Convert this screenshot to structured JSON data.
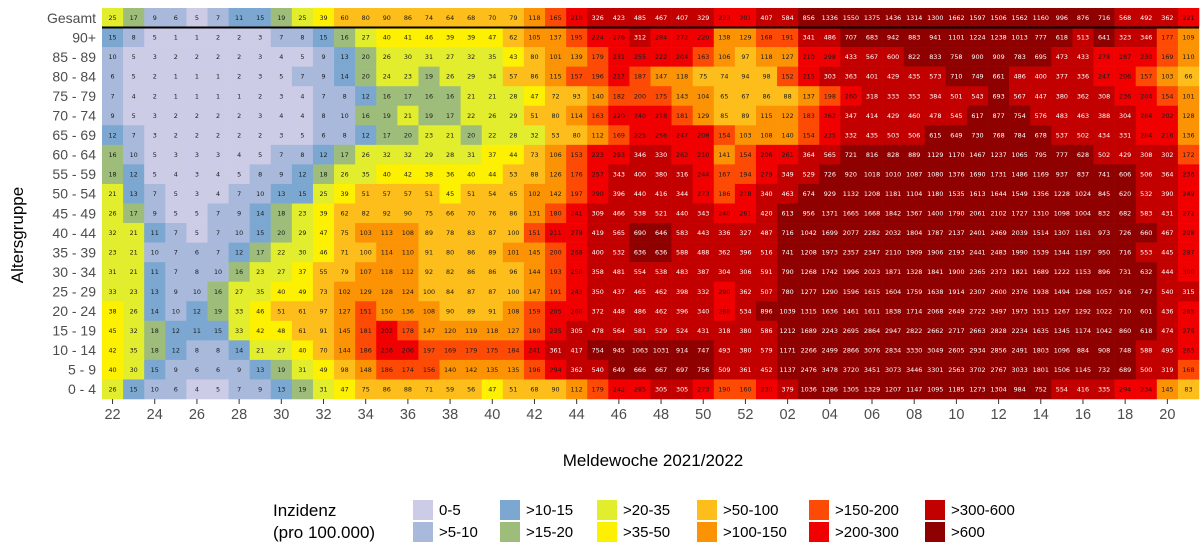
{
  "chart_data": {
    "type": "heatmap",
    "title": "",
    "xlabel": "Meldewoche 2021/2022",
    "ylabel": "Altersgruppe",
    "weeks": [
      "22",
      "23",
      "24",
      "25",
      "26",
      "27",
      "28",
      "29",
      "30",
      "31",
      "32",
      "33",
      "34",
      "35",
      "36",
      "37",
      "38",
      "39",
      "40",
      "41",
      "42",
      "43",
      "44",
      "45",
      "46",
      "47",
      "48",
      "49",
      "50",
      "51",
      "52",
      "01",
      "02",
      "03",
      "04",
      "05",
      "06",
      "07",
      "08",
      "09",
      "10",
      "11",
      "12",
      "13",
      "14",
      "15",
      "16",
      "17",
      "18",
      "19",
      "20",
      "21"
    ],
    "x_tick_labels": [
      "22",
      "24",
      "26",
      "28",
      "30",
      "32",
      "34",
      "36",
      "38",
      "40",
      "42",
      "44",
      "46",
      "48",
      "50",
      "52",
      "02",
      "04",
      "06",
      "08",
      "10",
      "12",
      "14",
      "16",
      "18",
      "20"
    ],
    "rows": [
      {
        "label": "Gesamt",
        "values": [
          25,
          17,
          9,
          6,
          5,
          7,
          11,
          15,
          19,
          25,
          39,
          60,
          80,
          90,
          86,
          74,
          64,
          68,
          70,
          79,
          118,
          165,
          218,
          326,
          423,
          485,
          467,
          407,
          329,
          233,
          201,
          407,
          584,
          856,
          1336,
          1550,
          1375,
          1436,
          1314,
          1300,
          1662,
          1597,
          1506,
          1562,
          1160,
          996,
          876,
          716,
          568,
          492,
          362,
          221
        ]
      },
      {
        "label": "90+",
        "values": [
          15,
          8,
          5,
          1,
          1,
          2,
          2,
          3,
          7,
          8,
          15,
          16,
          27,
          40,
          41,
          46,
          39,
          39,
          47,
          62,
          105,
          137,
          195,
          224,
          276,
          312,
          284,
          272,
          220,
          138,
          129,
          168,
          191,
          341,
          486,
          707,
          683,
          942,
          883,
          941,
          1101,
          1224,
          1238,
          1013,
          777,
          618,
          513,
          641,
          323,
          346,
          177,
          109
        ]
      },
      {
        "label": "85 - 89",
        "values": [
          10,
          5,
          3,
          2,
          2,
          2,
          2,
          3,
          4,
          5,
          9,
          13,
          20,
          26,
          30,
          31,
          27,
          32,
          35,
          43,
          80,
          101,
          139,
          179,
          231,
          255,
          222,
          204,
          163,
          106,
          97,
          118,
          127,
          210,
          298,
          433,
          567,
          600,
          822,
          833,
          758,
          900,
          909,
          783,
          695,
          473,
          433,
          278,
          287,
          230,
          169,
          110
        ]
      },
      {
        "label": "80 - 84",
        "values": [
          6,
          5,
          2,
          1,
          1,
          1,
          2,
          3,
          5,
          7,
          9,
          14,
          20,
          24,
          23,
          19,
          26,
          29,
          34,
          57,
          86,
          115,
          157,
          196,
          217,
          187,
          147,
          118,
          75,
          74,
          94,
          98,
          152,
          215,
          303,
          363,
          401,
          429,
          435,
          573,
          710,
          749,
          661,
          486,
          400,
          377,
          336,
          247,
          206,
          157,
          103,
          66
        ]
      },
      {
        "label": "75 - 79",
        "values": [
          7,
          4,
          2,
          1,
          1,
          1,
          1,
          2,
          3,
          4,
          7,
          8,
          12,
          16,
          17,
          16,
          16,
          21,
          21,
          28,
          47,
          72,
          93,
          140,
          182,
          200,
          175,
          143,
          104,
          65,
          67,
          86,
          88,
          137,
          198,
          260,
          318,
          333,
          353,
          384,
          501,
          543,
          693,
          567,
          447,
          380,
          362,
          308,
          236,
          204,
          154,
          101
        ]
      },
      {
        "label": "70 - 74",
        "values": [
          9,
          5,
          3,
          2,
          2,
          2,
          2,
          3,
          4,
          4,
          8,
          10,
          16,
          19,
          21,
          19,
          17,
          22,
          26,
          29,
          51,
          80,
          114,
          163,
          220,
          240,
          218,
          181,
          129,
          85,
          89,
          115,
          122,
          183,
          262,
          347,
          414,
          429,
          460,
          478,
          545,
          617,
          877,
          754,
          576,
          483,
          463,
          388,
          304,
          284,
          202,
          128
        ]
      },
      {
        "label": "65 - 69",
        "values": [
          12,
          7,
          3,
          2,
          2,
          2,
          2,
          2,
          3,
          5,
          6,
          8,
          12,
          17,
          20,
          23,
          21,
          20,
          22,
          28,
          32,
          53,
          80,
          112,
          169,
          225,
          256,
          247,
          208,
          154,
          103,
          108,
          140,
          154,
          235,
          332,
          435,
          503,
          506,
          615,
          649,
          730,
          768,
          784,
          678,
          537,
          502,
          434,
          331,
          284,
          216,
          136
        ]
      },
      {
        "label": "60 - 64",
        "values": [
          16,
          10,
          5,
          3,
          3,
          3,
          4,
          5,
          7,
          8,
          12,
          17,
          26,
          32,
          32,
          29,
          28,
          31,
          37,
          44,
          73,
          106,
          153,
          223,
          293,
          346,
          330,
          262,
          210,
          141,
          154,
          206,
          261,
          364,
          565,
          721,
          816,
          828,
          889,
          1129,
          1170,
          1467,
          1237,
          1065,
          795,
          777,
          628,
          502,
          429,
          308,
          302,
          172
        ]
      },
      {
        "label": "55 - 59",
        "values": [
          18,
          12,
          5,
          4,
          3,
          4,
          5,
          8,
          9,
          12,
          18,
          26,
          35,
          40,
          42,
          38,
          36,
          40,
          44,
          53,
          88,
          126,
          176,
          257,
          343,
          400,
          380,
          316,
          244,
          167,
          194,
          279,
          349,
          529,
          726,
          920,
          1018,
          1010,
          1087,
          1080,
          1376,
          1690,
          1731,
          1486,
          1169,
          937,
          837,
          741,
          606,
          506,
          364,
          236
        ]
      },
      {
        "label": "50 - 54",
        "values": [
          21,
          13,
          7,
          5,
          3,
          4,
          7,
          10,
          13,
          15,
          25,
          39,
          51,
          57,
          57,
          51,
          45,
          51,
          54,
          65,
          102,
          142,
          197,
          290,
          396,
          440,
          416,
          344,
          273,
          186,
          218,
          340,
          463,
          674,
          929,
          1132,
          1208,
          1181,
          1104,
          1180,
          1535,
          1613,
          1644,
          1549,
          1356,
          1228,
          1024,
          845,
          620,
          532,
          390,
          249
        ]
      },
      {
        "label": "45 - 49",
        "values": [
          26,
          17,
          9,
          5,
          5,
          7,
          9,
          14,
          18,
          23,
          39,
          62,
          82,
          92,
          90,
          75,
          66,
          70,
          76,
          86,
          131,
          180,
          241,
          309,
          466,
          538,
          521,
          440,
          343,
          240,
          261,
          420,
          613,
          956,
          1371,
          1665,
          1668,
          1842,
          1367,
          1400,
          1790,
          2061,
          2102,
          1727,
          1310,
          1098,
          1004,
          832,
          682,
          583,
          431,
          272
        ]
      },
      {
        "label": "40 - 44",
        "values": [
          32,
          21,
          11,
          7,
          5,
          7,
          10,
          15,
          20,
          29,
          47,
          75,
          103,
          113,
          108,
          89,
          78,
          83,
          87,
          100,
          151,
          211,
          278,
          419,
          565,
          690,
          646,
          583,
          443,
          336,
          327,
          487,
          716,
          1042,
          1699,
          2077,
          2282,
          2032,
          1804,
          1787,
          2137,
          2401,
          2469,
          2039,
          1514,
          1307,
          1161,
          973,
          726,
          660,
          467,
          298
        ]
      },
      {
        "label": "35 - 39",
        "values": [
          23,
          21,
          10,
          7,
          6,
          7,
          12,
          17,
          22,
          30,
          46,
          71,
          100,
          114,
          110,
          91,
          80,
          86,
          89,
          101,
          145,
          200,
          268,
          400,
          532,
          636,
          636,
          588,
          488,
          362,
          396,
          516,
          741,
          1208,
          1973,
          2357,
          2347,
          2110,
          1909,
          1906,
          2193,
          2441,
          2483,
          1990,
          1539,
          1344,
          1197,
          950,
          716,
          553,
          445,
          287
        ]
      },
      {
        "label": "30 - 34",
        "values": [
          31,
          21,
          11,
          7,
          8,
          10,
          16,
          23,
          27,
          37,
          55,
          79,
          107,
          118,
          112,
          92,
          82,
          86,
          86,
          96,
          144,
          193,
          250,
          358,
          481,
          554,
          538,
          483,
          387,
          304,
          306,
          591,
          790,
          1268,
          1742,
          1996,
          2023,
          1871,
          1328,
          1841,
          1900,
          2365,
          2373,
          1821,
          1689,
          1222,
          1153,
          896,
          731,
          632,
          444,
          300
        ]
      },
      {
        "label": "25 - 29",
        "values": [
          33,
          23,
          13,
          9,
          10,
          16,
          27,
          35,
          40,
          49,
          73,
          102,
          129,
          128,
          124,
          100,
          84,
          87,
          87,
          100,
          147,
          191,
          243,
          350,
          437,
          465,
          462,
          398,
          332,
          290,
          362,
          507,
          780,
          1277,
          1290,
          1596,
          1615,
          1604,
          1759,
          1638,
          1914,
          2307,
          2600,
          2376,
          1938,
          1494,
          1268,
          1057,
          916,
          747,
          540,
          315
        ]
      },
      {
        "label": "20 - 24",
        "values": [
          38,
          26,
          14,
          10,
          12,
          19,
          33,
          46,
          51,
          61,
          97,
          127,
          151,
          150,
          136,
          108,
          90,
          89,
          91,
          108,
          159,
          205,
          260,
          372,
          448,
          486,
          462,
          396,
          340,
          268,
          534,
          896,
          1039,
          1315,
          1636,
          1461,
          1611,
          1838,
          1714,
          2068,
          2649,
          2722,
          3497,
          1973,
          1513,
          1267,
          1292,
          1022,
          710,
          601,
          436,
          265
        ]
      },
      {
        "label": "15 - 19",
        "values": [
          45,
          32,
          18,
          12,
          11,
          15,
          33,
          42,
          48,
          61,
          91,
          145,
          181,
          202,
          178,
          147,
          120,
          119,
          118,
          127,
          180,
          235,
          305,
          478,
          564,
          581,
          529,
          524,
          431,
          318,
          380,
          586,
          1212,
          1689,
          2243,
          2695,
          2864,
          2947,
          2822,
          2662,
          2717,
          2663,
          2828,
          2234,
          1635,
          1345,
          1174,
          1042,
          860,
          618,
          474,
          276
        ]
      },
      {
        "label": "10 - 14",
        "values": [
          42,
          35,
          18,
          12,
          8,
          8,
          14,
          21,
          27,
          40,
          70,
          144,
          186,
          236,
          206,
          197,
          169,
          179,
          175,
          184,
          241,
          361,
          417,
          754,
          945,
          1063,
          1031,
          914,
          747,
          493,
          380,
          579,
          1171,
          2266,
          2499,
          2866,
          3076,
          2834,
          3330,
          3049,
          2605,
          2934,
          2856,
          2491,
          1803,
          1096,
          884,
          908,
          748,
          588,
          495,
          265
        ]
      },
      {
        "label": "5 - 9",
        "values": [
          40,
          30,
          15,
          9,
          6,
          6,
          9,
          13,
          19,
          31,
          49,
          98,
          148,
          186,
          174,
          156,
          140,
          142,
          135,
          135,
          196,
          294,
          362,
          540,
          649,
          666,
          667,
          697,
          756,
          509,
          361,
          452,
          1137,
          2476,
          3478,
          3720,
          3451,
          3073,
          3446,
          3301,
          2563,
          3702,
          2767,
          3033,
          1801,
          1506,
          1145,
          732,
          689,
          500,
          319,
          168
        ]
      },
      {
        "label": "0 - 4",
        "values": [
          26,
          15,
          10,
          6,
          4,
          5,
          7,
          9,
          13,
          19,
          31,
          47,
          75,
          86,
          88,
          71,
          59,
          56,
          47,
          51,
          68,
          90,
          112,
          179,
          242,
          285,
          305,
          305,
          273,
          190,
          160,
          230,
          379,
          1036,
          1286,
          1305,
          1329,
          1207,
          1147,
          1095,
          1185,
          1273,
          1304,
          984,
          752,
          554,
          416,
          335,
          294,
          234,
          145,
          83
        ]
      }
    ],
    "legend": {
      "title_line1": "Inzidenz",
      "title_line2": "(pro 100.000)",
      "items": [
        {
          "label": "0-5",
          "color": "#cccce6"
        },
        {
          "label": ">5-10",
          "color": "#a8b9db"
        },
        {
          "label": ">10-15",
          "color": "#7ba7d1"
        },
        {
          "label": ">15-20",
          "color": "#9ebd7b"
        },
        {
          "label": ">20-35",
          "color": "#e2ed2e"
        },
        {
          "label": ">35-50",
          "color": "#fdf000"
        },
        {
          "label": ">50-100",
          "color": "#fdbd1b"
        },
        {
          "label": ">100-150",
          "color": "#fb9305"
        },
        {
          "label": ">150-200",
          "color": "#fd4a05"
        },
        {
          "label": ">200-300",
          "color": "#f00000"
        },
        {
          "label": ">300-600",
          "color": "#c20000"
        },
        {
          "label": ">600",
          "color": "#8f0000"
        }
      ]
    },
    "thresholds": [
      5,
      10,
      15,
      20,
      35,
      50,
      100,
      150,
      200,
      300,
      600
    ],
    "grid": false,
    "legend_position": "bottom"
  }
}
